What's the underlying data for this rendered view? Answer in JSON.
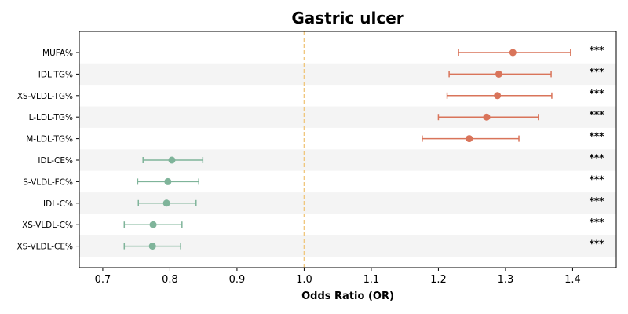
{
  "chart_data": {
    "type": "forest",
    "title": "Gastric ulcer",
    "xlabel": "Odds Ratio (OR)",
    "xlim": [
      0.665,
      1.465
    ],
    "xticks": [
      "0.7",
      "0.8",
      "0.9",
      "1.0",
      "1.1",
      "1.2",
      "1.3",
      "1.4"
    ],
    "reference_line": 1.0,
    "grid": false,
    "row_shading": "alternating",
    "colors": {
      "positive": "#d9745a",
      "negative": "#7fb49a",
      "reference": "#f0c77e",
      "shade": "#f4f4f4"
    },
    "rows": [
      {
        "label": "MUFA%",
        "or": 1.311,
        "lo": 1.23,
        "hi": 1.397,
        "sig": "***",
        "group": "positive"
      },
      {
        "label": "IDL-TG%",
        "or": 1.29,
        "lo": 1.216,
        "hi": 1.368,
        "sig": "***",
        "group": "positive"
      },
      {
        "label": "XS-VLDL-TG%",
        "or": 1.288,
        "lo": 1.213,
        "hi": 1.369,
        "sig": "***",
        "group": "positive"
      },
      {
        "label": "L-LDL-TG%",
        "or": 1.272,
        "lo": 1.2,
        "hi": 1.349,
        "sig": "***",
        "group": "positive"
      },
      {
        "label": "M-LDL-TG%",
        "or": 1.246,
        "lo": 1.176,
        "hi": 1.32,
        "sig": "***",
        "group": "positive"
      },
      {
        "label": "IDL-CE%",
        "or": 0.803,
        "lo": 0.76,
        "hi": 0.849,
        "sig": "***",
        "group": "negative"
      },
      {
        "label": "S-VLDL-FC%",
        "or": 0.797,
        "lo": 0.752,
        "hi": 0.843,
        "sig": "***",
        "group": "negative"
      },
      {
        "label": "IDL-C%",
        "or": 0.795,
        "lo": 0.753,
        "hi": 0.839,
        "sig": "***",
        "group": "negative"
      },
      {
        "label": "XS-VLDL-C%",
        "or": 0.775,
        "lo": 0.732,
        "hi": 0.818,
        "sig": "***",
        "group": "negative"
      },
      {
        "label": "XS-VLDL-CE%",
        "or": 0.774,
        "lo": 0.732,
        "hi": 0.816,
        "sig": "***",
        "group": "negative"
      }
    ]
  }
}
